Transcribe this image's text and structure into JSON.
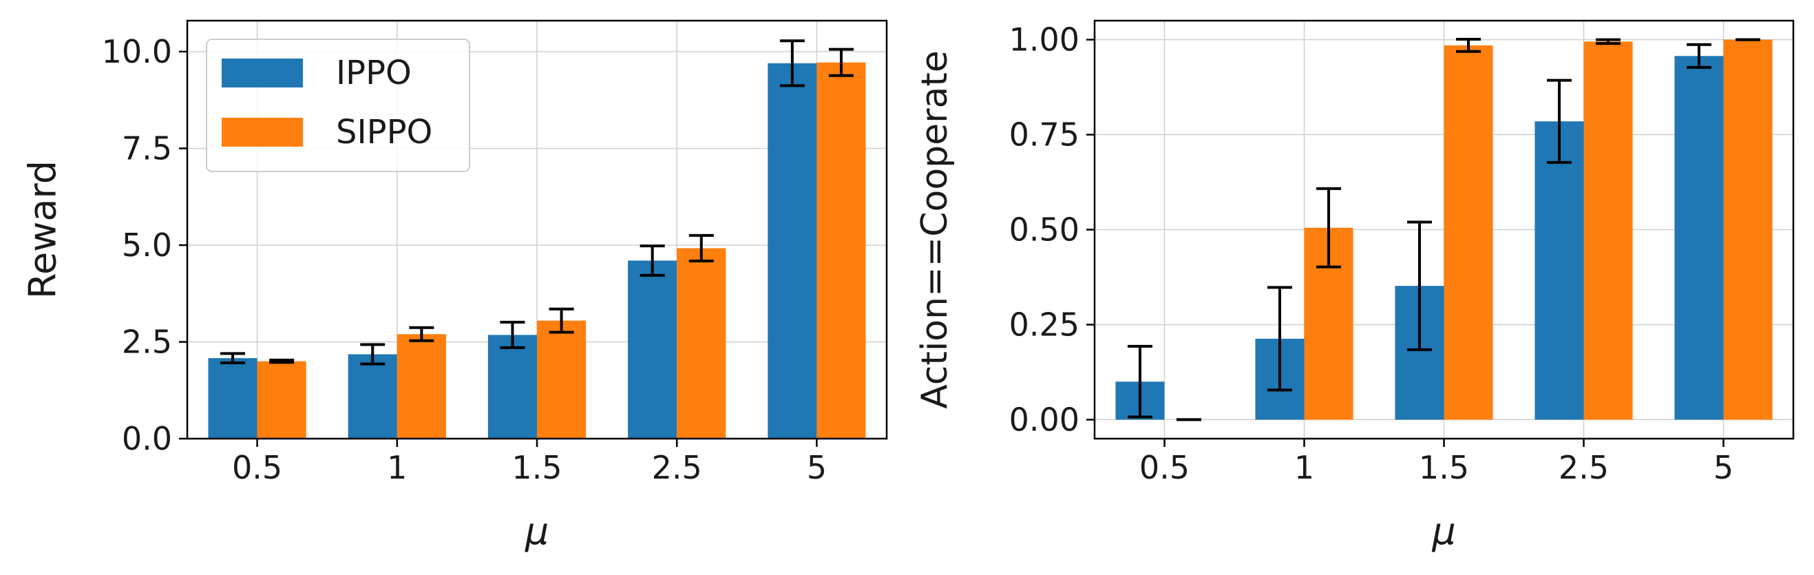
{
  "chart_data": [
    {
      "type": "bar",
      "title": "",
      "xlabel": "μ",
      "ylabel": "Reward",
      "categories": [
        "0.5",
        "1",
        "1.5",
        "2.5",
        "5"
      ],
      "ylim": [
        0,
        10.8
      ],
      "yticks": [
        0,
        2.5,
        5,
        7.5,
        10
      ],
      "ytick_labels": [
        "0.0",
        "2.5",
        "5.0",
        "7.5",
        "10.0"
      ],
      "grid": true,
      "legend": "top-left",
      "series": [
        {
          "name": "IPPO",
          "color": "#1f77b4",
          "values": [
            2.08,
            2.18,
            2.68,
            4.6,
            9.7
          ],
          "errors": [
            0.12,
            0.25,
            0.33,
            0.38,
            0.58
          ]
        },
        {
          "name": "SIPPO",
          "color": "#ff7f0e",
          "values": [
            2.0,
            2.7,
            3.05,
            4.92,
            9.72
          ],
          "errors": [
            0.03,
            0.17,
            0.3,
            0.33,
            0.34
          ]
        }
      ]
    },
    {
      "type": "bar",
      "title": "",
      "xlabel": "μ",
      "ylabel": "Action==Cooperate",
      "categories": [
        "0.5",
        "1",
        "1.5",
        "2.5",
        "5"
      ],
      "ylim": [
        -0.05,
        1.05
      ],
      "yticks": [
        0,
        0.25,
        0.5,
        0.75,
        1.0
      ],
      "ytick_labels": [
        "0.00",
        "0.25",
        "0.50",
        "0.75",
        "1.00"
      ],
      "grid": true,
      "legend": "none",
      "series": [
        {
          "name": "IPPO",
          "color": "#1f77b4",
          "values": [
            0.1,
            0.213,
            0.352,
            0.785,
            0.957
          ],
          "errors": [
            0.093,
            0.135,
            0.168,
            0.108,
            0.03
          ]
        },
        {
          "name": "SIPPO",
          "color": "#ff7f0e",
          "values": [
            0.0,
            0.505,
            0.985,
            0.995,
            1.0
          ],
          "errors": [
            0.0,
            0.103,
            0.016,
            0.005,
            0.0
          ]
        }
      ]
    }
  ]
}
